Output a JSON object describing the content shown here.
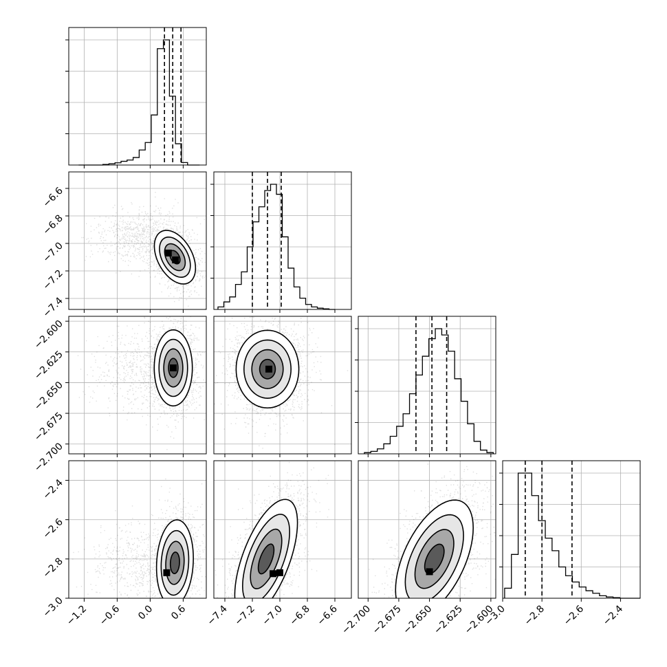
{
  "chart_data": {
    "type": "corner",
    "params": [
      {
        "ticks": [
          -1.2,
          -0.6,
          0.0,
          0.6
        ],
        "tick_labels": [
          "−1.2",
          "−0.6",
          "0.0",
          "0.6"
        ],
        "range": [
          -1.48,
          1.02
        ]
      },
      {
        "ticks": [
          -7.4,
          -7.2,
          -7.0,
          -6.8,
          -6.6
        ],
        "tick_labels": [
          "−7.4",
          "−7.2",
          "−7.0",
          "−6.8",
          "−6.6"
        ],
        "range": [
          -7.48,
          -6.48
        ]
      },
      {
        "ticks": [
          -2.7,
          -2.675,
          -2.65,
          -2.625,
          -2.6
        ],
        "tick_labels": [
          "−2.700",
          "−2.675",
          "−2.650",
          "−2.625",
          "−2.600"
        ],
        "range": [
          -2.708,
          -2.596
        ]
      },
      {
        "ticks": [
          -3.0,
          -2.8,
          -2.6,
          -2.4
        ],
        "tick_labels": [
          "−3.0",
          "−2.8",
          "−2.6",
          "−2.4"
        ],
        "range": [
          -3.0,
          -2.3
        ]
      }
    ],
    "histograms": [
      {
        "param": 0,
        "edges_range": [
          -1.3,
          0.9
        ],
        "counts": [
          0,
          0,
          0,
          0,
          0.005,
          0.01,
          0.018,
          0.03,
          0.04,
          0.06,
          0.12,
          0.18,
          0.4,
          0.93,
          1.0,
          0.55,
          0.17,
          0.02,
          0,
          0
        ],
        "quantiles": [
          0.26,
          0.41,
          0.56
        ]
      },
      {
        "param": 1,
        "edges_range": [
          -7.45,
          -6.6
        ],
        "counts": [
          0.02,
          0.06,
          0.1,
          0.2,
          0.3,
          0.5,
          0.7,
          0.82,
          0.95,
          1.0,
          0.92,
          0.58,
          0.33,
          0.18,
          0.09,
          0.04,
          0.02,
          0.01,
          0.005,
          0
        ],
        "quantiles": [
          -7.2,
          -7.09,
          -6.99
        ]
      },
      {
        "param": 2,
        "edges_range": [
          -2.703,
          -2.598
        ],
        "counts": [
          0.01,
          0.02,
          0.04,
          0.08,
          0.14,
          0.22,
          0.32,
          0.48,
          0.63,
          0.78,
          0.92,
          1.0,
          0.95,
          0.82,
          0.6,
          0.42,
          0.24,
          0.1,
          0.03,
          0.01
        ],
        "quantiles": [
          -2.661,
          -2.648,
          -2.636
        ]
      },
      {
        "param": 3,
        "edges_range": [
          -2.99,
          -2.3
        ],
        "counts": [
          0.08,
          0.35,
          1.0,
          1.0,
          0.82,
          0.62,
          0.48,
          0.38,
          0.25,
          0.18,
          0.13,
          0.09,
          0.06,
          0.04,
          0.02,
          0.01,
          0.005,
          0,
          0,
          0
        ],
        "quantiles": [
          -2.885,
          -2.8,
          -2.647
        ]
      }
    ],
    "pairs": [
      {
        "row": 1,
        "col": 0,
        "center": [
          0.45,
          -7.1
        ],
        "cov": [
          [
            0.035,
            -0.0075
          ],
          [
            -0.0075,
            0.0095
          ]
        ],
        "tail": {
          "weight": 0.35,
          "center": [
            -0.2,
            -6.95
          ],
          "spread": [
            0.4,
            0.1
          ]
        },
        "modes": [
          [
            0.33,
            -7.07
          ],
          [
            0.46,
            -7.12
          ]
        ]
      },
      {
        "row": 2,
        "col": 0,
        "center": [
          0.42,
          -2.638
        ],
        "cov": [
          [
            0.03,
            0.0
          ],
          [
            0.0,
            0.00024
          ]
        ],
        "tail": {
          "weight": 0.3,
          "center": [
            -0.2,
            -2.638
          ],
          "spread": [
            0.45,
            0.017
          ]
        },
        "modes": [
          [
            0.42,
            -2.638
          ]
        ]
      },
      {
        "row": 3,
        "col": 0,
        "center": [
          0.45,
          -2.82
        ],
        "cov": [
          [
            0.028,
            0.002
          ],
          [
            0.002,
            0.012
          ]
        ],
        "tail": {
          "weight": 0.3,
          "center": [
            -0.2,
            -2.82
          ],
          "spread": [
            0.45,
            0.1
          ]
        },
        "modes": [
          [
            0.3,
            -2.87
          ]
        ]
      },
      {
        "row": 2,
        "col": 1,
        "center": [
          -7.09,
          -2.639
        ],
        "cov": [
          [
            0.013,
            0.0
          ],
          [
            0.0,
            0.00025
          ]
        ],
        "tail": {
          "weight": 0.0,
          "center": [
            -7.09,
            -2.639
          ],
          "spread": [
            0.1,
            0.01
          ]
        },
        "modes": [
          [
            -7.08,
            -2.639
          ]
        ]
      },
      {
        "row": 3,
        "col": 1,
        "center": [
          -7.1,
          -2.8
        ],
        "cov": [
          [
            0.013,
            0.0105
          ],
          [
            0.0105,
            0.023
          ]
        ],
        "tail": {
          "weight": 0.0,
          "center": [
            -7.1,
            -2.8
          ],
          "spread": [
            0.1,
            0.1
          ]
        },
        "modes": [
          [
            -7.05,
            -2.875
          ],
          [
            -7.0,
            -2.87
          ]
        ]
      },
      {
        "row": 3,
        "col": 2,
        "center": [
          -2.646,
          -2.8
        ],
        "cov": [
          [
            0.00025,
            0.00125
          ],
          [
            0.00125,
            0.0225
          ]
        ],
        "tail": {
          "weight": 0.0,
          "center": [
            -2.646,
            -2.8
          ],
          "spread": [
            0.01,
            0.1
          ]
        },
        "modes": [
          [
            -2.65,
            -2.865
          ]
        ]
      }
    ]
  }
}
